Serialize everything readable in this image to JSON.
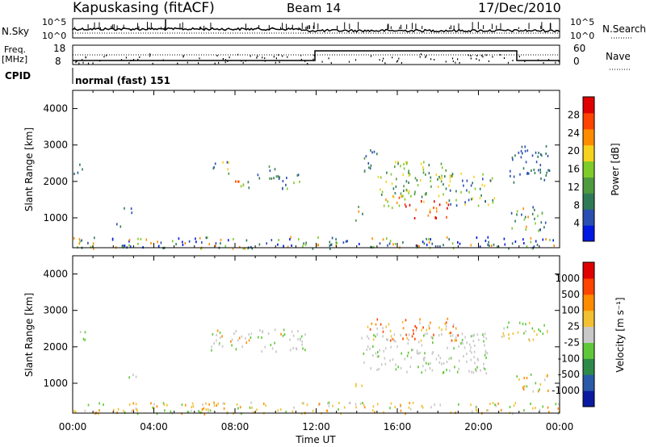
{
  "header": {
    "station": "Kapuskasing (fitACF)",
    "beam": "Beam 14",
    "date": "17/Dec/2010"
  },
  "top_panels": {
    "nsky_label": "N.Sky",
    "nsky_ticks": [
      "10^5",
      "10^0"
    ],
    "nsearch_label": "N.Search",
    "nsearch_ticks": [
      "10^5",
      "10^0"
    ],
    "freq_label_1": "Freq.",
    "freq_label_2": "[MHz]",
    "freq_ticks": [
      "18",
      "8"
    ],
    "nave_label": "Nave",
    "nave_ticks": [
      "60",
      "0"
    ],
    "cpid_label": "CPID",
    "cpid_value": "normal (fast) 151"
  },
  "chart_data": [
    {
      "type": "heatmap",
      "name": "power",
      "ylabel": "Slant Range [km]",
      "yticks": [
        "4000",
        "3000",
        "2000",
        "1000"
      ],
      "ylim": [
        180,
        4500
      ],
      "colorbar_label": "Power [dB]",
      "colorbar_ticks": [
        "28",
        "24",
        "20",
        "16",
        "12",
        "8",
        "4"
      ],
      "colors": [
        "#0018e0",
        "#2a4fb0",
        "#2f7a56",
        "#4f9a3f",
        "#7ecb2a",
        "#f7d21c",
        "#ff8c00",
        "#ff4400",
        "#e00000"
      ],
      "bands": [
        {
          "t0": 0.0,
          "t1": 0.6,
          "r0": 2200,
          "r1": 2500,
          "levels": [
            1,
            2
          ]
        },
        {
          "t0": 2.0,
          "t1": 2.5,
          "r0": 750,
          "r1": 900,
          "levels": [
            1,
            2
          ]
        },
        {
          "t0": 2.5,
          "t1": 3.1,
          "r0": 1050,
          "r1": 1300,
          "levels": [
            1,
            2
          ]
        },
        {
          "t0": 6.9,
          "t1": 7.8,
          "r0": 2200,
          "r1": 2600,
          "levels": [
            1,
            3,
            5
          ]
        },
        {
          "t0": 7.8,
          "t1": 9.0,
          "r0": 1850,
          "r1": 2150,
          "levels": [
            2,
            4,
            6,
            7
          ]
        },
        {
          "t0": 9.0,
          "t1": 10.3,
          "r0": 2100,
          "r1": 2500,
          "levels": [
            1,
            2,
            3
          ]
        },
        {
          "t0": 10.3,
          "t1": 11.3,
          "r0": 1800,
          "r1": 2250,
          "levels": [
            1,
            3,
            4
          ]
        },
        {
          "t0": 13.9,
          "t1": 14.3,
          "r0": 950,
          "r1": 1350,
          "levels": [
            2,
            3,
            5,
            6
          ]
        },
        {
          "t0": 14.2,
          "t1": 15.0,
          "r0": 2200,
          "r1": 2900,
          "levels": [
            1,
            2,
            3
          ]
        },
        {
          "t0": 15.0,
          "t1": 16.8,
          "r0": 1300,
          "r1": 1650,
          "levels": [
            4,
            6,
            7,
            8
          ]
        },
        {
          "t0": 16.8,
          "t1": 18.5,
          "r0": 1000,
          "r1": 1500,
          "levels": [
            5,
            6,
            7,
            8
          ]
        },
        {
          "t0": 15.0,
          "t1": 18.5,
          "r0": 1600,
          "r1": 2600,
          "levels": [
            2,
            3,
            4,
            5
          ]
        },
        {
          "t0": 18.5,
          "t1": 20.8,
          "r0": 1350,
          "r1": 2250,
          "levels": [
            1,
            2,
            4,
            5
          ]
        },
        {
          "t0": 21.6,
          "t1": 23.3,
          "r0": 650,
          "r1": 1350,
          "levels": [
            1,
            2,
            4,
            6
          ]
        },
        {
          "t0": 21.5,
          "t1": 23.5,
          "r0": 2000,
          "r1": 3000,
          "levels": [
            1,
            2
          ]
        },
        {
          "t0": 0.0,
          "t1": 24.0,
          "r0": 180,
          "r1": 500,
          "levels": [
            0,
            1,
            2,
            4,
            6
          ]
        }
      ]
    },
    {
      "type": "heatmap",
      "name": "velocity",
      "ylabel": "Slant Range [km]",
      "yticks": [
        "4000",
        "3000",
        "2000",
        "1000"
      ],
      "ylim": [
        180,
        4500
      ],
      "xticks": [
        "00:00",
        "04:00",
        "08:00",
        "12:00",
        "16:00",
        "20:00",
        "00:00"
      ],
      "xlabel": "Time UT",
      "colorbar_label": "Velocity [m s⁻¹]",
      "colorbar_ticks": [
        "1000",
        "500",
        "100",
        "25",
        "-25",
        "-100",
        "-500",
        "-1000"
      ],
      "colors": [
        "#0a1aa0",
        "#2a5aa8",
        "#2f8a4a",
        "#5fc83a",
        "#c8c8c8",
        "#f2c032",
        "#ff8c00",
        "#ff4400",
        "#e00000"
      ],
      "bands": [
        {
          "t0": 0.0,
          "t1": 0.6,
          "r0": 2200,
          "r1": 2500,
          "levels": [
            4,
            3
          ]
        },
        {
          "t0": 2.5,
          "t1": 3.1,
          "r0": 1050,
          "r1": 1300,
          "levels": [
            3,
            4
          ]
        },
        {
          "t0": 6.8,
          "t1": 11.5,
          "r0": 1900,
          "r1": 2500,
          "levels": [
            4,
            4,
            4,
            3,
            6
          ]
        },
        {
          "t0": 13.9,
          "t1": 14.3,
          "r0": 950,
          "r1": 1300,
          "levels": [
            3,
            6,
            5
          ]
        },
        {
          "t0": 14.2,
          "t1": 20.5,
          "r0": 1300,
          "r1": 2400,
          "levels": [
            4,
            4,
            4,
            4,
            3
          ]
        },
        {
          "t0": 14.5,
          "t1": 19.0,
          "r0": 2200,
          "r1": 2800,
          "levels": [
            6,
            7,
            5,
            4
          ]
        },
        {
          "t0": 21.0,
          "t1": 23.5,
          "r0": 2200,
          "r1": 2700,
          "levels": [
            4,
            3,
            5
          ]
        },
        {
          "t0": 21.8,
          "t1": 23.5,
          "r0": 800,
          "r1": 1300,
          "levels": [
            3,
            4,
            5,
            6
          ]
        },
        {
          "t0": 0.0,
          "t1": 24.0,
          "r0": 180,
          "r1": 500,
          "levels": [
            5,
            5,
            6,
            3,
            4
          ]
        }
      ]
    }
  ]
}
